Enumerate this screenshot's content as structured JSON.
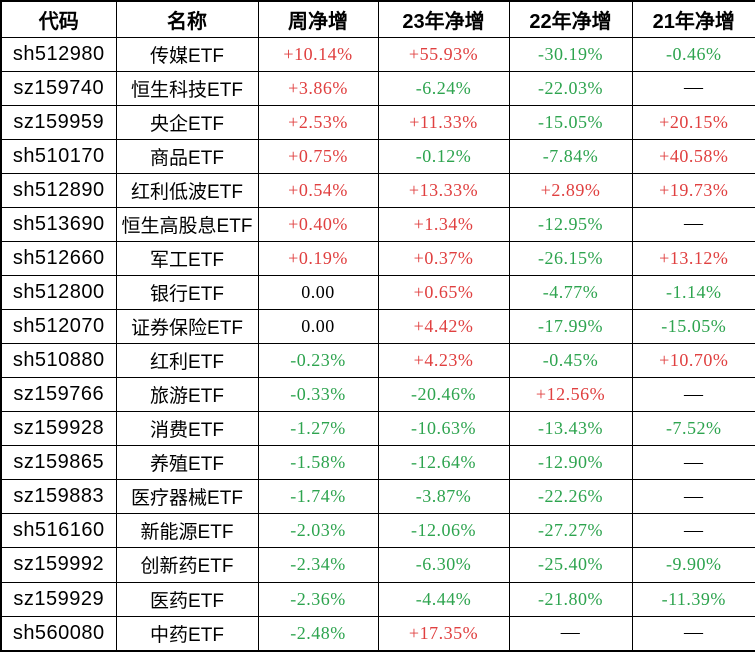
{
  "colors": {
    "up": "#e04040",
    "down": "#2ea44f",
    "flat": "#000000",
    "na": "#000000",
    "grid": "#000000",
    "background": "#ffffff"
  },
  "chart_data": {
    "type": "table",
    "columns": [
      "代码",
      "名称",
      "周净增",
      "23年净增",
      "22年净增",
      "21年净增"
    ],
    "rows": [
      {
        "code": "sh512980",
        "name": "传媒ETF",
        "values": [
          {
            "text": "+10.14%",
            "tone": "up"
          },
          {
            "text": "+55.93%",
            "tone": "up"
          },
          {
            "text": "-30.19%",
            "tone": "down"
          },
          {
            "text": "-0.46%",
            "tone": "down"
          }
        ]
      },
      {
        "code": "sz159740",
        "name": "恒生科技ETF",
        "values": [
          {
            "text": "+3.86%",
            "tone": "up"
          },
          {
            "text": "-6.24%",
            "tone": "down"
          },
          {
            "text": "-22.03%",
            "tone": "down"
          },
          {
            "text": "—",
            "tone": "na"
          }
        ]
      },
      {
        "code": "sz159959",
        "name": "央企ETF",
        "values": [
          {
            "text": "+2.53%",
            "tone": "up"
          },
          {
            "text": "+11.33%",
            "tone": "up"
          },
          {
            "text": "-15.05%",
            "tone": "down"
          },
          {
            "text": "+20.15%",
            "tone": "up"
          }
        ]
      },
      {
        "code": "sh510170",
        "name": "商品ETF",
        "values": [
          {
            "text": "+0.75%",
            "tone": "up"
          },
          {
            "text": "-0.12%",
            "tone": "down"
          },
          {
            "text": "-7.84%",
            "tone": "down"
          },
          {
            "text": "+40.58%",
            "tone": "up"
          }
        ]
      },
      {
        "code": "sh512890",
        "name": "红利低波ETF",
        "values": [
          {
            "text": "+0.54%",
            "tone": "up"
          },
          {
            "text": "+13.33%",
            "tone": "up"
          },
          {
            "text": "+2.89%",
            "tone": "up"
          },
          {
            "text": "+19.73%",
            "tone": "up"
          }
        ]
      },
      {
        "code": "sh513690",
        "name": "恒生高股息ETF",
        "values": [
          {
            "text": "+0.40%",
            "tone": "up"
          },
          {
            "text": "+1.34%",
            "tone": "up"
          },
          {
            "text": "-12.95%",
            "tone": "down"
          },
          {
            "text": "—",
            "tone": "na"
          }
        ]
      },
      {
        "code": "sh512660",
        "name": "军工ETF",
        "values": [
          {
            "text": "+0.19%",
            "tone": "up"
          },
          {
            "text": "+0.37%",
            "tone": "up"
          },
          {
            "text": "-26.15%",
            "tone": "down"
          },
          {
            "text": "+13.12%",
            "tone": "up"
          }
        ]
      },
      {
        "code": "sh512800",
        "name": "银行ETF",
        "values": [
          {
            "text": "0.00",
            "tone": "flat"
          },
          {
            "text": "+0.65%",
            "tone": "up"
          },
          {
            "text": "-4.77%",
            "tone": "down"
          },
          {
            "text": "-1.14%",
            "tone": "down"
          }
        ]
      },
      {
        "code": "sh512070",
        "name": "证券保险ETF",
        "values": [
          {
            "text": "0.00",
            "tone": "flat"
          },
          {
            "text": "+4.42%",
            "tone": "up"
          },
          {
            "text": "-17.99%",
            "tone": "down"
          },
          {
            "text": "-15.05%",
            "tone": "down"
          }
        ]
      },
      {
        "code": "sh510880",
        "name": "红利ETF",
        "values": [
          {
            "text": "-0.23%",
            "tone": "down"
          },
          {
            "text": "+4.23%",
            "tone": "up"
          },
          {
            "text": "-0.45%",
            "tone": "down"
          },
          {
            "text": "+10.70%",
            "tone": "up"
          }
        ]
      },
      {
        "code": "sz159766",
        "name": "旅游ETF",
        "values": [
          {
            "text": "-0.33%",
            "tone": "down"
          },
          {
            "text": "-20.46%",
            "tone": "down"
          },
          {
            "text": "+12.56%",
            "tone": "up"
          },
          {
            "text": "—",
            "tone": "na"
          }
        ]
      },
      {
        "code": "sz159928",
        "name": "消费ETF",
        "values": [
          {
            "text": "-1.27%",
            "tone": "down"
          },
          {
            "text": "-10.63%",
            "tone": "down"
          },
          {
            "text": "-13.43%",
            "tone": "down"
          },
          {
            "text": "-7.52%",
            "tone": "down"
          }
        ]
      },
      {
        "code": "sz159865",
        "name": "养殖ETF",
        "values": [
          {
            "text": "-1.58%",
            "tone": "down"
          },
          {
            "text": "-12.64%",
            "tone": "down"
          },
          {
            "text": "-12.90%",
            "tone": "down"
          },
          {
            "text": "—",
            "tone": "na"
          }
        ]
      },
      {
        "code": "sz159883",
        "name": "医疗器械ETF",
        "values": [
          {
            "text": "-1.74%",
            "tone": "down"
          },
          {
            "text": "-3.87%",
            "tone": "down"
          },
          {
            "text": "-22.26%",
            "tone": "down"
          },
          {
            "text": "—",
            "tone": "na"
          }
        ]
      },
      {
        "code": "sh516160",
        "name": "新能源ETF",
        "values": [
          {
            "text": "-2.03%",
            "tone": "down"
          },
          {
            "text": "-12.06%",
            "tone": "down"
          },
          {
            "text": "-27.27%",
            "tone": "down"
          },
          {
            "text": "—",
            "tone": "na"
          }
        ]
      },
      {
        "code": "sz159992",
        "name": "创新药ETF",
        "values": [
          {
            "text": "-2.34%",
            "tone": "down"
          },
          {
            "text": "-6.30%",
            "tone": "down"
          },
          {
            "text": "-25.40%",
            "tone": "down"
          },
          {
            "text": "-9.90%",
            "tone": "down"
          }
        ]
      },
      {
        "code": "sz159929",
        "name": "医药ETF",
        "values": [
          {
            "text": "-2.36%",
            "tone": "down"
          },
          {
            "text": "-4.44%",
            "tone": "down"
          },
          {
            "text": "-21.80%",
            "tone": "down"
          },
          {
            "text": "-11.39%",
            "tone": "down"
          }
        ]
      },
      {
        "code": "sh560080",
        "name": "中药ETF",
        "values": [
          {
            "text": "-2.48%",
            "tone": "down"
          },
          {
            "text": "+17.35%",
            "tone": "up"
          },
          {
            "text": "—",
            "tone": "na"
          },
          {
            "text": "—",
            "tone": "na"
          }
        ]
      }
    ]
  }
}
